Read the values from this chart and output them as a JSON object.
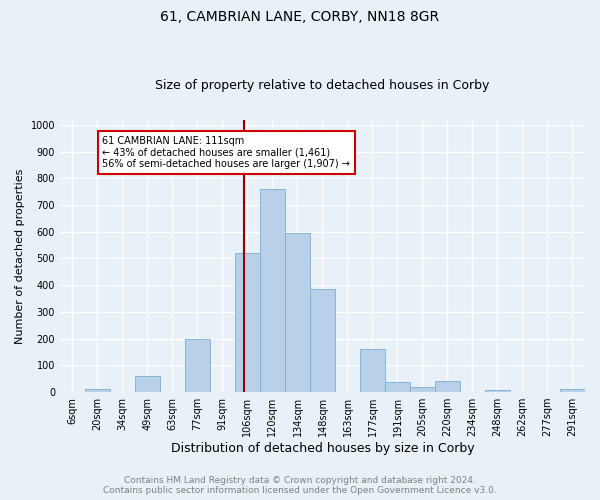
{
  "title": "61, CAMBRIAN LANE, CORBY, NN18 8GR",
  "subtitle": "Size of property relative to detached houses in Corby",
  "xlabel": "Distribution of detached houses by size in Corby",
  "ylabel": "Number of detached properties",
  "categories": [
    "6sqm",
    "20sqm",
    "34sqm",
    "49sqm",
    "63sqm",
    "77sqm",
    "91sqm",
    "106sqm",
    "120sqm",
    "134sqm",
    "148sqm",
    "163sqm",
    "177sqm",
    "191sqm",
    "205sqm",
    "220sqm",
    "234sqm",
    "248sqm",
    "262sqm",
    "277sqm",
    "291sqm"
  ],
  "values": [
    0,
    12,
    0,
    62,
    0,
    197,
    0,
    520,
    760,
    595,
    387,
    0,
    160,
    37,
    20,
    42,
    0,
    8,
    0,
    0,
    10
  ],
  "bar_color": "#b8d0e8",
  "bar_edge_color": "#7bafd4",
  "marker_line_color": "#990000",
  "annotation_line1": "61 CAMBRIAN LANE: 111sqm",
  "annotation_line2": "← 43% of detached houses are smaller (1,461)",
  "annotation_line3": "56% of semi-detached houses are larger (1,907) →",
  "annotation_box_edge": "#cc0000",
  "ylim": [
    0,
    1000
  ],
  "yticks": [
    0,
    100,
    200,
    300,
    400,
    500,
    600,
    700,
    800,
    900,
    1000
  ],
  "footer_line1": "Contains HM Land Registry data © Crown copyright and database right 2024.",
  "footer_line2": "Contains public sector information licensed under the Open Government Licence v3.0.",
  "background_color": "#e8f0f8",
  "plot_background_color": "#e8f0f8",
  "grid_color": "#ffffff",
  "title_fontsize": 10,
  "subtitle_fontsize": 9,
  "xlabel_fontsize": 9,
  "ylabel_fontsize": 8,
  "tick_fontsize": 7,
  "footer_fontsize": 6.5
}
